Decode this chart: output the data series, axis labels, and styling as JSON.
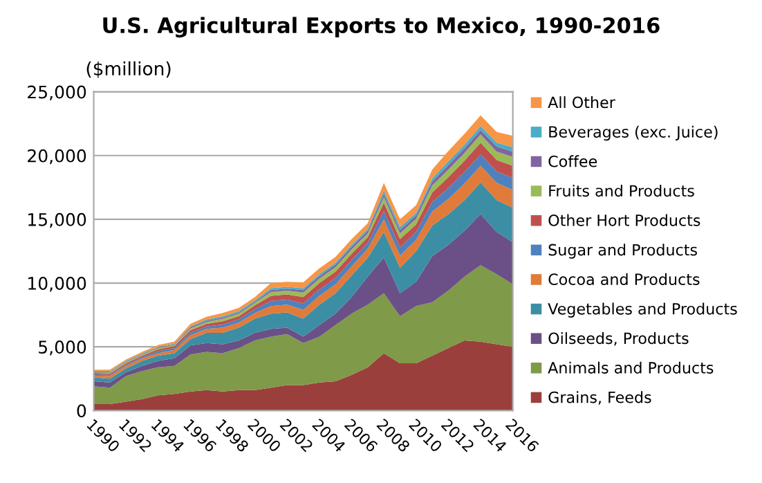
{
  "chart_data": {
    "type": "area",
    "stacked": true,
    "title": "U.S. Agricultural Exports to Mexico, 1990-2016",
    "ylabel": "($million)",
    "x": [
      1990,
      1991,
      1992,
      1993,
      1994,
      1995,
      1996,
      1997,
      1998,
      1999,
      2000,
      2001,
      2002,
      2003,
      2004,
      2005,
      2006,
      2007,
      2008,
      2009,
      2010,
      2011,
      2012,
      2013,
      2014,
      2015,
      2016
    ],
    "xlim": [
      1990,
      2016
    ],
    "xticks": [
      1990,
      1992,
      1994,
      1996,
      1998,
      2000,
      2002,
      2004,
      2006,
      2008,
      2010,
      2012,
      2014,
      2016
    ],
    "ylim": [
      0,
      25000
    ],
    "yticks": [
      {
        "value": 0,
        "label": "0"
      },
      {
        "value": 5000,
        "label": "5,000"
      },
      {
        "value": 10000,
        "label": "10,000"
      },
      {
        "value": 15000,
        "label": "15,000"
      },
      {
        "value": 20000,
        "label": "20,000"
      },
      {
        "value": 25000,
        "label": "25,000"
      }
    ],
    "grid": "y",
    "legend": "right",
    "series": [
      {
        "name": "Grains, Feeds",
        "color": "#9b3f3c",
        "values": [
          500,
          500,
          700,
          900,
          1200,
          1300,
          1500,
          1600,
          1500,
          1600,
          1600,
          1800,
          2000,
          2000,
          2200,
          2300,
          2800,
          3400,
          4500,
          3700,
          3700,
          4300,
          4900,
          5500,
          5400,
          5200,
          5000
        ]
      },
      {
        "name": "Animals and Products",
        "color": "#7f9a48",
        "values": [
          1400,
          1300,
          2000,
          2200,
          2200,
          2200,
          2900,
          3000,
          3000,
          3300,
          3900,
          4000,
          4000,
          3300,
          3600,
          4400,
          4800,
          4900,
          4700,
          3700,
          4500,
          4200,
          4500,
          5000,
          6000,
          5500,
          4900
        ]
      },
      {
        "name": "Oilseeds, Products",
        "color": "#6a5086",
        "values": [
          400,
          400,
          300,
          400,
          500,
          600,
          700,
          700,
          700,
          600,
          600,
          600,
          500,
          500,
          900,
          900,
          1300,
          2200,
          2800,
          1800,
          1900,
          3600,
          3600,
          3600,
          4000,
          3300,
          3300
        ]
      },
      {
        "name": "Vegetables and Products",
        "color": "#3c8ea4",
        "values": [
          300,
          300,
          300,
          400,
          400,
          400,
          500,
          800,
          900,
          1000,
          1100,
          1200,
          1200,
          1400,
          1600,
          1600,
          1700,
          1500,
          2000,
          2000,
          2400,
          2400,
          2400,
          2400,
          2500,
          2500,
          2700
        ]
      },
      {
        "name": "Cocoa and Products",
        "color": "#e07b39",
        "values": [
          150,
          200,
          200,
          200,
          200,
          250,
          300,
          300,
          400,
          400,
          450,
          600,
          600,
          700,
          700,
          700,
          700,
          700,
          1000,
          950,
          900,
          1100,
          1200,
          1300,
          1300,
          1350,
          1400
        ]
      },
      {
        "name": "Sugar and Products",
        "color": "#4f81bd",
        "values": [
          100,
          100,
          100,
          100,
          150,
          150,
          200,
          200,
          250,
          250,
          300,
          400,
          400,
          500,
          500,
          500,
          500,
          450,
          650,
          650,
          600,
          750,
          850,
          900,
          900,
          900,
          950
        ]
      },
      {
        "name": "Other Hort Products",
        "color": "#c0504d",
        "values": [
          100,
          100,
          100,
          100,
          150,
          150,
          200,
          200,
          250,
          250,
          300,
          400,
          400,
          500,
          500,
          500,
          500,
          450,
          650,
          650,
          600,
          750,
          850,
          900,
          900,
          900,
          950
        ]
      },
      {
        "name": "Fruits and Products",
        "color": "#9bbb59",
        "values": [
          50,
          100,
          100,
          100,
          100,
          100,
          150,
          150,
          200,
          200,
          200,
          300,
          300,
          350,
          350,
          350,
          350,
          300,
          450,
          450,
          450,
          550,
          600,
          600,
          650,
          650,
          700
        ]
      },
      {
        "name": "Coffee",
        "color": "#8064a2",
        "values": [
          50,
          50,
          50,
          50,
          50,
          50,
          100,
          100,
          100,
          100,
          100,
          150,
          150,
          200,
          200,
          200,
          200,
          200,
          250,
          250,
          250,
          300,
          350,
          350,
          350,
          400,
          400
        ]
      },
      {
        "name": "Beverages (exc. Juice)",
        "color": "#4bacc6",
        "values": [
          50,
          50,
          50,
          50,
          50,
          50,
          50,
          100,
          100,
          100,
          100,
          150,
          150,
          150,
          150,
          150,
          150,
          150,
          250,
          250,
          200,
          250,
          300,
          300,
          300,
          300,
          350
        ]
      },
      {
        "name": "All Other",
        "color": "#f79646",
        "values": [
          100,
          100,
          100,
          100,
          150,
          150,
          200,
          200,
          250,
          250,
          250,
          400,
          400,
          450,
          450,
          450,
          450,
          450,
          600,
          600,
          600,
          700,
          800,
          850,
          850,
          850,
          900
        ]
      }
    ]
  }
}
